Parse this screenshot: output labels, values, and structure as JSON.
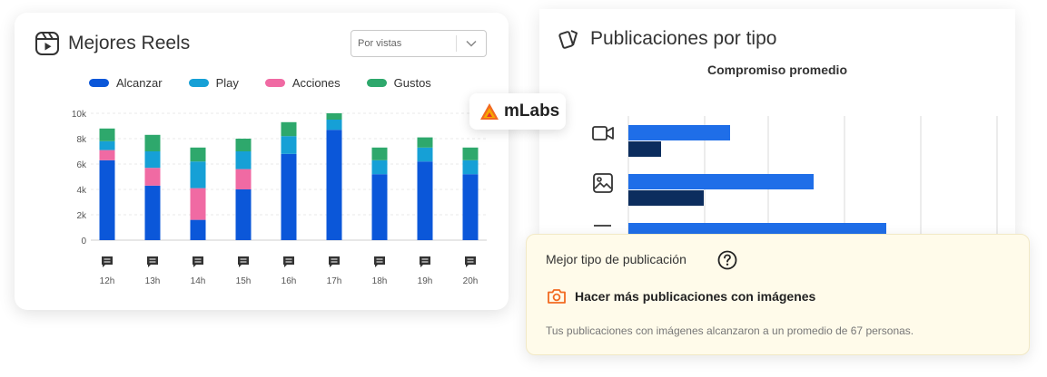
{
  "best_reels": {
    "title": "Mejores Reels",
    "title_icon": "reels-icon",
    "sort_select": {
      "value": "Por vistas",
      "icon": "chevron-down-icon"
    },
    "legend": [
      {
        "name": "Alcanzar",
        "color": "#0b57d9"
      },
      {
        "name": "Play",
        "color": "#16a0d6"
      },
      {
        "name": "Acciones",
        "color": "#f06aa3"
      },
      {
        "name": "Gustos",
        "color": "#2ea86c"
      }
    ],
    "hour_icon": "comment-icon"
  },
  "chart_data": [
    {
      "type": "bar",
      "stacked": true,
      "categories": [
        "12h",
        "13h",
        "14h",
        "15h",
        "16h",
        "17h",
        "18h",
        "19h",
        "20h"
      ],
      "series": [
        {
          "name": "Alcanzar",
          "color": "#0b57d9",
          "values": [
            6300,
            4300,
            1600,
            4000,
            6800,
            8700,
            5200,
            6200,
            5200
          ]
        },
        {
          "name": "Acciones",
          "color": "#f06aa3",
          "values": [
            800,
            1400,
            2500,
            1600,
            0,
            0,
            0,
            0,
            0
          ]
        },
        {
          "name": "Play",
          "color": "#16a0d6",
          "values": [
            700,
            1300,
            2100,
            1400,
            1400,
            800,
            1100,
            1100,
            1100
          ]
        },
        {
          "name": "Gustos",
          "color": "#2ea86c",
          "values": [
            1000,
            1300,
            1100,
            1000,
            1100,
            500,
            1000,
            800,
            1000
          ]
        }
      ],
      "y_ticks": [
        "0",
        "2k",
        "4k",
        "6k",
        "8k",
        "10k"
      ],
      "ylim": [
        0,
        10000
      ],
      "grid": "horizontal",
      "legend_position": "top"
    },
    {
      "type": "bar",
      "orientation": "horizontal",
      "title": "Compromiso promedio",
      "categories": [
        "video-icon",
        "image-icon",
        "carousel-icon"
      ],
      "series": [
        {
          "color": "#1f6ee8",
          "values": [
            112,
            204,
            284
          ]
        },
        {
          "color": "#0c2d5e",
          "values": [
            36,
            83,
            null
          ]
        }
      ],
      "grid": "vertical"
    }
  ],
  "posts_by_type": {
    "title": "Publicaciones por tipo",
    "title_icon": "cards-icon",
    "subtitle": "Compromiso promedio"
  },
  "brand_badge": {
    "name": "mLabs",
    "logo": "mlabs-logo"
  },
  "insight": {
    "label": "Mejor tipo de publicación",
    "help_icon": "help-icon",
    "headline": "Hacer más publicaciones con imágenes",
    "headline_icon": "camera-icon",
    "detail": "Tus publicaciones con imágenes alcanzaron a un promedio de 67 personas."
  }
}
